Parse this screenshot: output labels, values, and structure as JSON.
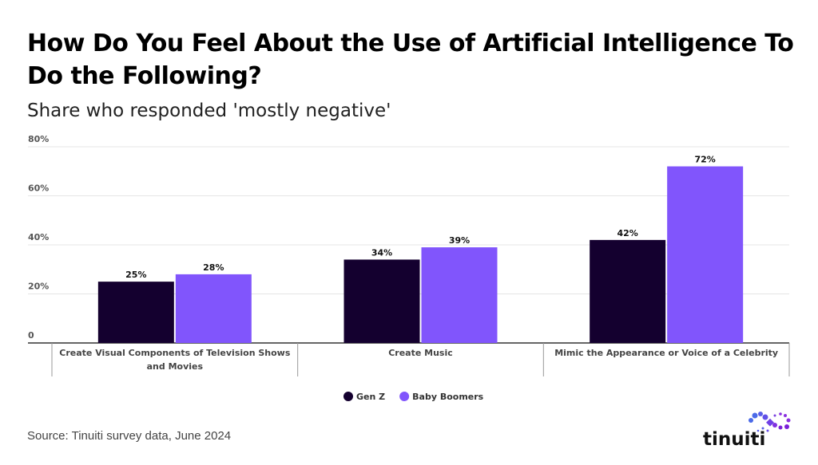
{
  "title": "How Do You Feel About the Use of Artificial Intelligence To Do the Following?",
  "subtitle": "Share who responded 'mostly negative'",
  "source": "Source: Tinuiti survey data, June 2024",
  "logo": "tinuiti",
  "chart_data": {
    "type": "bar",
    "categories": [
      "Create Visual Components of Television Shows and Movies",
      "Create Music",
      "Mimic the Appearance or Voice of a Celebrity"
    ],
    "category_lines": [
      [
        "Create Visual Components of Television Shows",
        "and Movies"
      ],
      [
        "Create Music"
      ],
      [
        "Mimic the Appearance or Voice of a Celebrity"
      ]
    ],
    "series": [
      {
        "name": "Gen Z",
        "values": [
          25,
          34,
          42
        ],
        "color": "#14002f"
      },
      {
        "name": "Baby Boomers",
        "values": [
          28,
          39,
          72
        ],
        "color": "#8155fc"
      }
    ],
    "ylim": [
      0,
      80
    ],
    "yticks": [
      0,
      20,
      40,
      60,
      80
    ],
    "ytick_labels": [
      "0",
      "20%",
      "40%",
      "60%",
      "80%"
    ],
    "value_suffix": "%",
    "grid": true,
    "legend": "bottom-center"
  }
}
